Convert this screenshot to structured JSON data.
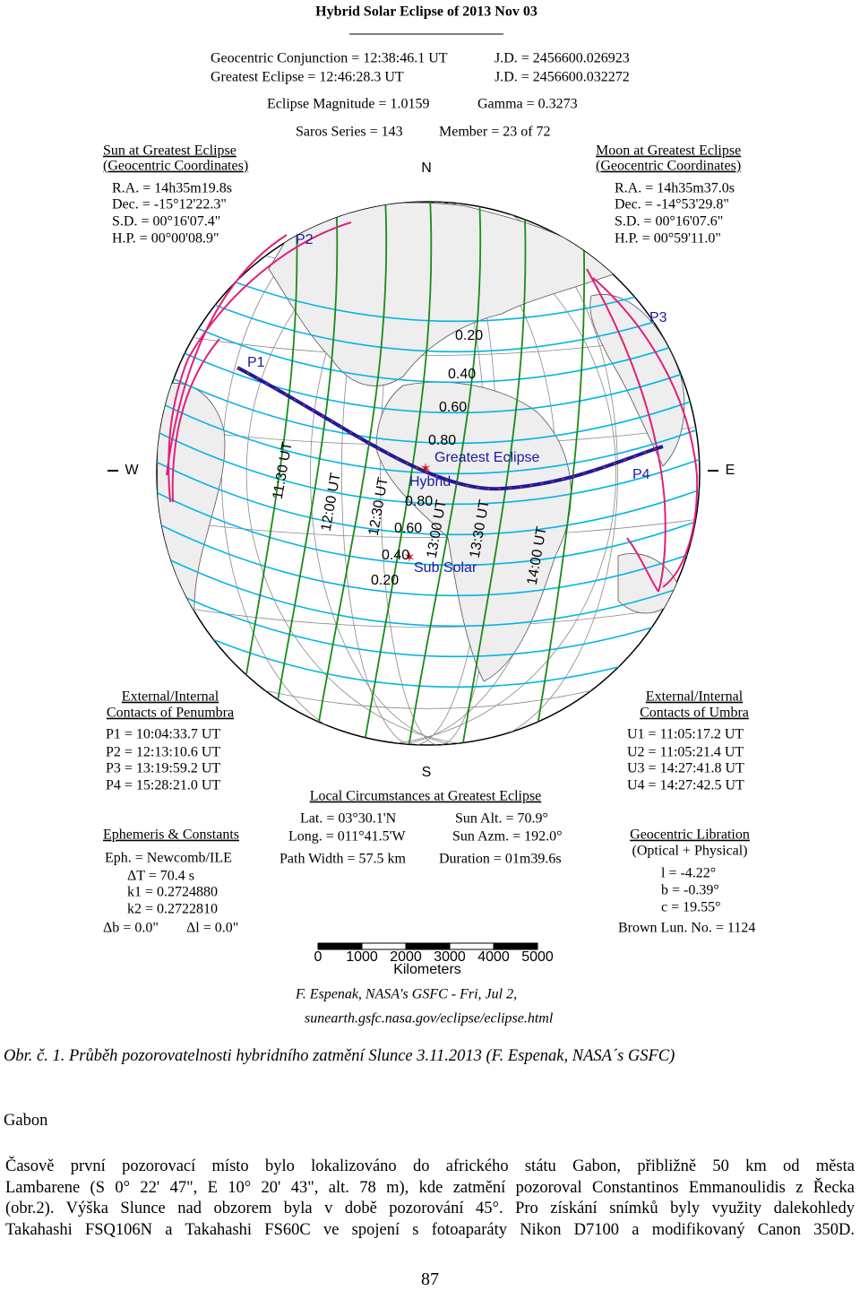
{
  "figure": {
    "title": "Hybrid Solar Eclipse of  2013 Nov 03",
    "header": [
      [
        "Geocentric Conjunction = 12:38:46.1 UT",
        "J.D. = 2456600.026923"
      ],
      [
        "Greatest Eclipse = 12:46:28.3 UT",
        "J.D. = 2456600.032272"
      ],
      [
        "Eclipse Magnitude = 1.0159",
        "Gamma = 0.3273"
      ],
      [
        "Saros Series = 143",
        "Member = 23 of 72"
      ]
    ],
    "sun": {
      "heading": [
        "Sun at Greatest Eclipse",
        "(Geocentric Coordinates)"
      ],
      "rows": [
        "R.A. = 14h35m19.8s",
        "Dec. = -15°12'22.3\"",
        "S.D. = 00°16'07.4\"",
        "H.P. = 00°00'08.9\""
      ]
    },
    "moon": {
      "heading": [
        "Moon at Greatest Eclipse",
        "(Geocentric Coordinates)"
      ],
      "rows": [
        "R.A. = 14h35m37.0s",
        "Dec. = -14°53'29.8\"",
        "S.D. = 00°16'07.6\"",
        "H.P. = 00°59'11.0\""
      ]
    },
    "compass": {
      "n": "N",
      "s": "S",
      "w": "W",
      "e": "E"
    },
    "map_labels": {
      "contacts": [
        "P1",
        "P2",
        "P3",
        "P4"
      ],
      "greatest": "Greatest Eclipse",
      "hybrid": "Hybrid",
      "sub_solar": "Sub Solar",
      "magnitudes_north": [
        "0.20",
        "0.40",
        "0.60",
        "0.80"
      ],
      "magnitudes_south": [
        "0.80",
        "0.60",
        "0.40",
        "0.20"
      ],
      "times": [
        "11:30 UT",
        "12:00 UT",
        "12:30 UT",
        "13:00 UT",
        "13:30 UT",
        "14:00 UT"
      ]
    },
    "penumbra": {
      "heading": [
        "External/Internal",
        "Contacts of Penumbra"
      ],
      "rows": [
        "P1 = 10:04:33.7 UT",
        "P2 = 12:13:10.6 UT",
        "P3 = 13:19:59.2 UT",
        "P4 = 15:28:21.0 UT"
      ]
    },
    "umbra": {
      "heading": [
        "External/Internal",
        "Contacts of Umbra"
      ],
      "rows": [
        "U1 = 11:05:17.2 UT",
        "U2 = 11:05:21.4 UT",
        "U3 = 14:27:41.8 UT",
        "U4 = 14:27:42.5 UT"
      ]
    },
    "local": {
      "heading": "Local Circumstances at Greatest Eclipse",
      "rows": [
        [
          "Lat. = 03°30.1'N",
          "Sun Alt. = 70.9°"
        ],
        [
          "Long. = 011°41.5'W",
          "Sun Azm. = 192.0°"
        ],
        [
          "Path Width = 57.5 km",
          "Duration = 01m39.6s"
        ]
      ]
    },
    "ephemeris": {
      "heading": "Ephemeris & Constants",
      "rows": [
        "Eph. = Newcomb/ILE",
        "ΔT = 70.4 s",
        "k1 = 0.2724880",
        "k2 = 0.2722810",
        "Δb = 0.0\"",
        "Δl = 0.0\""
      ]
    },
    "libration": {
      "heading": [
        "Geocentric Libration",
        "(Optical + Physical)"
      ],
      "rows": [
        "l = -4.22°",
        "b = -0.39°",
        "c = 19.55°",
        "Brown Lun. No. = 1124"
      ]
    },
    "scale": {
      "ticks": [
        0,
        1000,
        2000,
        3000,
        4000,
        5000
      ],
      "unit": "Kilometers"
    },
    "credit": [
      "F. Espenak, NASA's GSFC - Fri, Jul 2,",
      "sunearth.gsfc.nasa.gov/eclipse/eclipse.html"
    ]
  },
  "caption": "Obr. č. 1. Průběh pozorovatelnosti hybridního zatmění Slunce 3.11.2013 (F. Espenak, NASA´s GSFC)",
  "section": "Gabon",
  "paragraph": [
    "Časově první pozorovací místo bylo lokalizováno do afrického státu Gabon, přibližně 50 km od města",
    "Lambarene (S 0° 22' 47\", E 10° 20' 43\", alt. 78 m), kde zatmění pozoroval Constantinos Emmanoulidis z Řecka",
    "(obr.2). Výška Slunce nad obzorem byla v době pozorování 45°. Pro získání snímků byly využity dalekohledy",
    "Takahashi FSQ106N a Takahashi FS60C ve spojení s fotoaparáty Nikon D7100 a modifikovaný Canon 350D."
  ],
  "page_number": "87"
}
